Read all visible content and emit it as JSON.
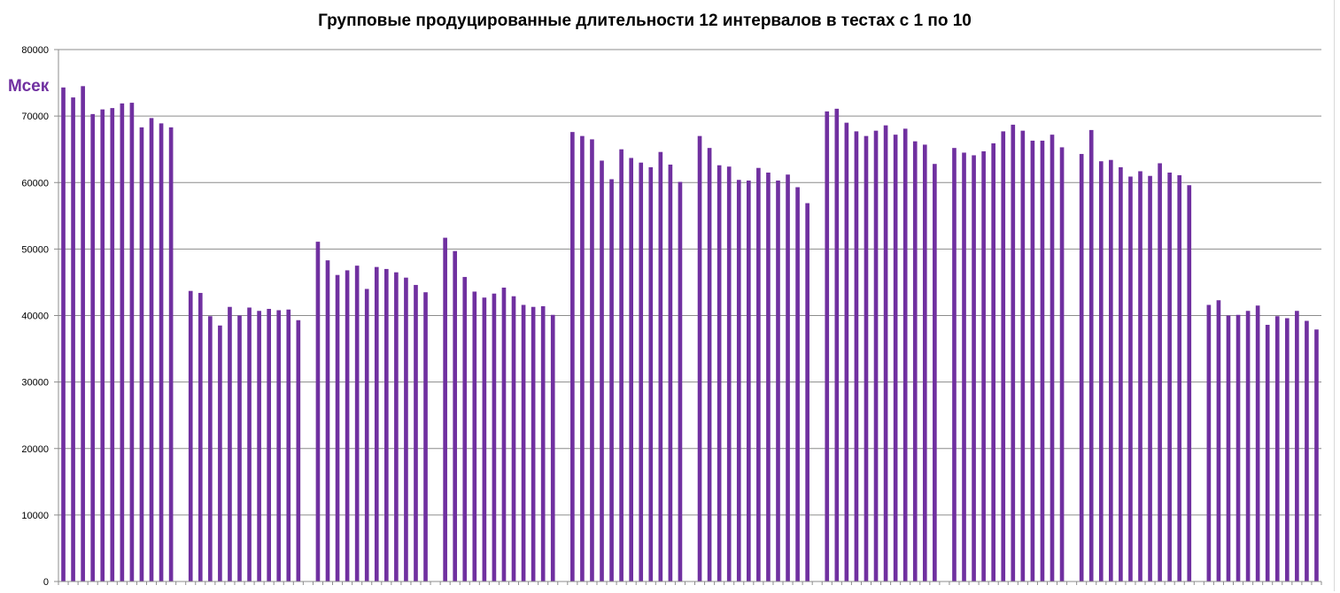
{
  "chart_data": {
    "type": "bar",
    "title": "Групповые продуцированные длительности 12 интервалов  в тестах с 1 по 10",
    "ylabel": "Мсек",
    "xlabel": "",
    "ylim": [
      0,
      80000
    ],
    "y_ticks": [
      0,
      10000,
      20000,
      30000,
      40000,
      50000,
      60000,
      70000,
      80000
    ],
    "y_tick_labels": [
      "0",
      "10000",
      "20000",
      "30000",
      "40000",
      "50000",
      "60000",
      "70000",
      "80000"
    ],
    "grid": "horizontal",
    "legend": "none",
    "bar_color": "#7030a0",
    "groups": [
      {
        "values": [
          74300,
          72800,
          74500,
          70300,
          71000,
          71200,
          71900,
          72000,
          68300,
          69700,
          68900,
          68300
        ]
      },
      {
        "values": [
          43700,
          43400,
          39900,
          38500,
          41300,
          40000,
          41200,
          40700,
          41000,
          40800,
          40900,
          39300
        ]
      },
      {
        "values": [
          51100,
          48300,
          46100,
          46800,
          47500,
          44000,
          47300,
          47000,
          46500,
          45700,
          44600,
          43500
        ]
      },
      {
        "values": [
          51700,
          49700,
          45800,
          43600,
          42700,
          43300,
          44200,
          42900,
          41600,
          41300,
          41400,
          40100
        ]
      },
      {
        "values": [
          67600,
          67000,
          66500,
          63300,
          60500,
          65000,
          63700,
          63000,
          62300,
          64600,
          62700,
          60100
        ]
      },
      {
        "values": [
          67000,
          65200,
          62600,
          62400,
          60400,
          60300,
          62200,
          61500,
          60300,
          61200,
          59300,
          56900
        ]
      },
      {
        "values": [
          70700,
          71100,
          69000,
          67700,
          67000,
          67800,
          68600,
          67200,
          68100,
          66200,
          65700,
          62800
        ]
      },
      {
        "values": [
          65200,
          64500,
          64100,
          64700,
          65900,
          67700,
          68700,
          67800,
          66300,
          66300,
          67200,
          65300
        ]
      },
      {
        "values": [
          64300,
          67900,
          63200,
          63400,
          62300,
          60900,
          61700,
          61000,
          62900,
          61500,
          61100,
          59600
        ]
      },
      {
        "values": [
          41600,
          42300,
          40000,
          40100,
          40700,
          41500,
          38600,
          39900,
          39600,
          40700,
          39200,
          37900
        ]
      }
    ]
  }
}
